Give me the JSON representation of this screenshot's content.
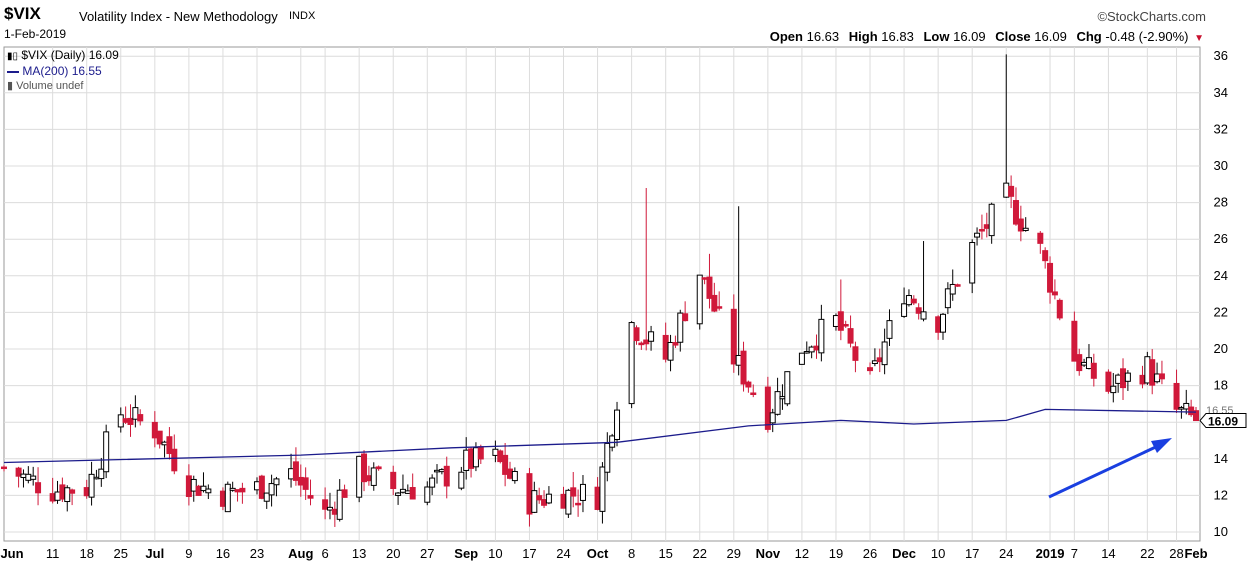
{
  "header": {
    "symbol": "$VIX",
    "description": "Volatility Index - New Methodology",
    "exchange": "INDX",
    "date": "1-Feb-2019",
    "brand": "©StockCharts.com",
    "open_label": "Open",
    "open": "16.63",
    "high_label": "High",
    "high": "16.83",
    "low_label": "Low",
    "low": "16.09",
    "close_label": "Close",
    "close": "16.09",
    "chg_label": "Chg",
    "chg": "-0.48 (-2.90%)"
  },
  "legend": {
    "price": "$VIX (Daily) 16.09",
    "ma": "MA(200) 16.55",
    "volume": "Volume undef"
  },
  "colors": {
    "up": "#000000",
    "down": "#d0193a",
    "ma": "#1c1c8c",
    "arrow": "#1a3fe0",
    "grid": "#dcdcdc"
  },
  "chart_data": {
    "type": "candlestick",
    "title": "$VIX Volatility Index - New Methodology",
    "ylim": [
      9,
      37
    ],
    "yticks": [
      10,
      12,
      14,
      16,
      18,
      20,
      22,
      24,
      26,
      28,
      30,
      32,
      34,
      36
    ],
    "y_axis_side": "right",
    "grid": true,
    "current_value_label": "16.09",
    "ma_value_label": "16.55",
    "x_tick_labels": [
      "Jun",
      "11",
      "18",
      "25",
      "Jul",
      "9",
      "16",
      "23",
      "Aug",
      "6",
      "13",
      "20",
      "27",
      "Sep",
      "10",
      "17",
      "24",
      "Oct",
      "8",
      "15",
      "22",
      "29",
      "Nov",
      "12",
      "19",
      "26",
      "Dec",
      "10",
      "17",
      "24",
      "2019",
      "7",
      "14",
      "22",
      "28",
      "Feb"
    ],
    "close_series": [
      {
        "date": "2018-06-01",
        "close": 13.5
      },
      {
        "date": "2018-06-11",
        "close": 12.3
      },
      {
        "date": "2018-06-18",
        "close": 12.4
      },
      {
        "date": "2018-06-25",
        "close": 16.5
      },
      {
        "date": "2018-07-02",
        "close": 15.6
      },
      {
        "date": "2018-07-09",
        "close": 12.7
      },
      {
        "date": "2018-07-16",
        "close": 12.1
      },
      {
        "date": "2018-07-23",
        "close": 12.4
      },
      {
        "date": "2018-07-30",
        "close": 13.2
      },
      {
        "date": "2018-08-06",
        "close": 11.0
      },
      {
        "date": "2018-08-13",
        "close": 13.4
      },
      {
        "date": "2018-08-20",
        "close": 12.4
      },
      {
        "date": "2018-08-27",
        "close": 12.4
      },
      {
        "date": "2018-09-04",
        "close": 13.8
      },
      {
        "date": "2018-09-10",
        "close": 14.0
      },
      {
        "date": "2018-09-17",
        "close": 11.7
      },
      {
        "date": "2018-09-24",
        "close": 12.1
      },
      {
        "date": "2018-10-01",
        "close": 12.0
      },
      {
        "date": "2018-10-08",
        "close": 21.4
      },
      {
        "date": "2018-10-15",
        "close": 19.5
      },
      {
        "date": "2018-10-22",
        "close": 24.2
      },
      {
        "date": "2018-10-29",
        "close": 19.5
      },
      {
        "date": "2018-11-05",
        "close": 16.4
      },
      {
        "date": "2018-11-12",
        "close": 20.1
      },
      {
        "date": "2018-11-19",
        "close": 21.5
      },
      {
        "date": "2018-11-26",
        "close": 18.1
      },
      {
        "date": "2018-12-03",
        "close": 23.2
      },
      {
        "date": "2018-12-10",
        "close": 21.6
      },
      {
        "date": "2018-12-17",
        "close": 25.6
      },
      {
        "date": "2018-12-24",
        "close": 28.3
      },
      {
        "date": "2018-12-31",
        "close": 25.4
      },
      {
        "date": "2019-01-07",
        "close": 19.5
      },
      {
        "date": "2019-01-14",
        "close": 17.8
      },
      {
        "date": "2019-01-22",
        "close": 19.0
      },
      {
        "date": "2019-01-28",
        "close": 16.6
      },
      {
        "date": "2019-02-01",
        "close": 16.09
      }
    ],
    "ma200_series": [
      {
        "date": "2018-06-01",
        "value": 13.8
      },
      {
        "date": "2018-08-01",
        "value": 14.2
      },
      {
        "date": "2018-09-01",
        "value": 14.6
      },
      {
        "date": "2018-10-05",
        "value": 14.9
      },
      {
        "date": "2018-11-01",
        "value": 15.8
      },
      {
        "date": "2018-11-20",
        "value": 16.1
      },
      {
        "date": "2018-12-05",
        "value": 15.9
      },
      {
        "date": "2018-12-24",
        "value": 16.1
      },
      {
        "date": "2019-01-01",
        "value": 16.7
      },
      {
        "date": "2019-02-01",
        "value": 16.55
      }
    ]
  }
}
